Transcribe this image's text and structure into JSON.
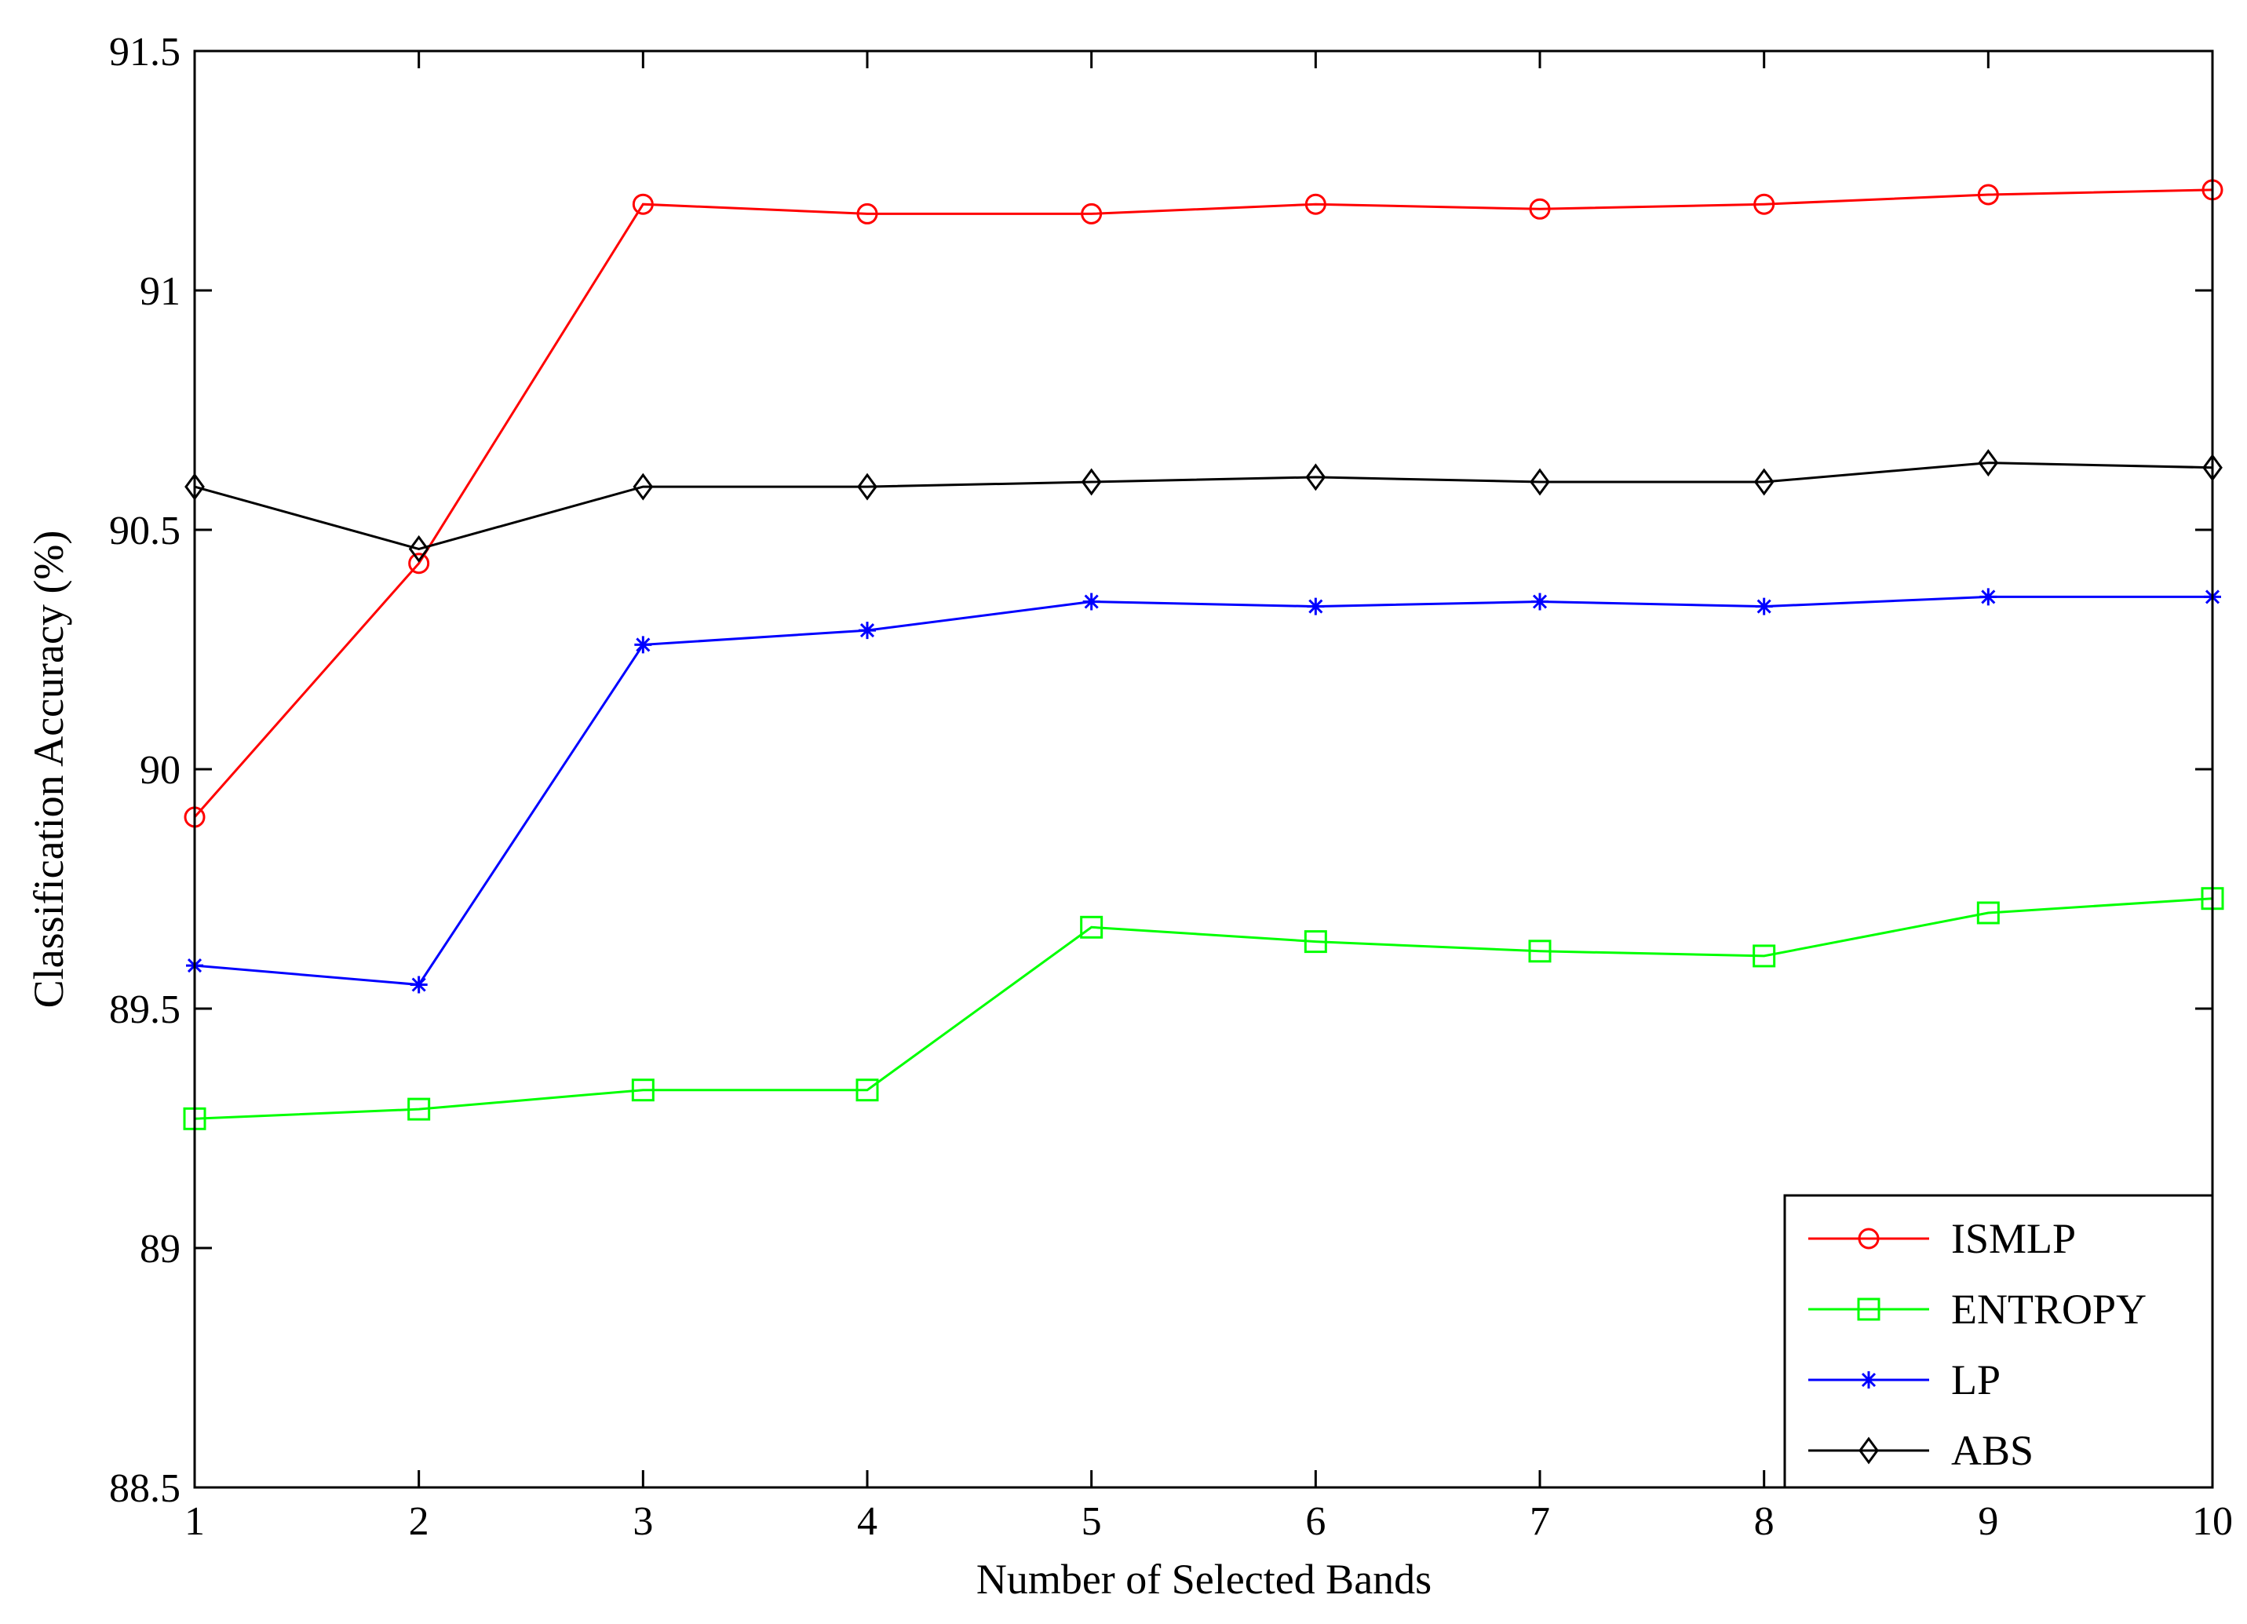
{
  "chart_data": {
    "type": "line",
    "title": "",
    "xlabel": "Number of Selected Bands",
    "ylabel": "Classification Accuracy (%)",
    "xlim": [
      1,
      10
    ],
    "ylim": [
      88.5,
      91.5
    ],
    "x": [
      1,
      2,
      3,
      4,
      5,
      6,
      7,
      8,
      9,
      10
    ],
    "xticks": [
      "1",
      "2",
      "3",
      "4",
      "5",
      "6",
      "7",
      "8",
      "9",
      "10"
    ],
    "yticks": [
      "88.5",
      "89",
      "89.5",
      "90",
      "90.5",
      "91",
      "91.5"
    ],
    "grid": false,
    "legend_position": "bottom-right",
    "series": [
      {
        "name": "ISMLP",
        "color": "#ff0000",
        "marker": "circle",
        "values": [
          89.9,
          90.43,
          91.18,
          91.16,
          91.16,
          91.18,
          91.17,
          91.18,
          91.2,
          91.21
        ]
      },
      {
        "name": "ENTROPY",
        "color": "#00ff00",
        "marker": "square",
        "values": [
          89.27,
          89.29,
          89.33,
          89.33,
          89.67,
          89.64,
          89.62,
          89.61,
          89.7,
          89.73
        ]
      },
      {
        "name": "LP",
        "color": "#0000ff",
        "marker": "asterisk",
        "values": [
          89.59,
          89.55,
          90.26,
          90.29,
          90.35,
          90.34,
          90.35,
          90.34,
          90.36,
          90.36
        ]
      },
      {
        "name": "ABS",
        "color": "#000000",
        "marker": "diamond",
        "values": [
          90.59,
          90.46,
          90.59,
          90.59,
          90.6,
          90.61,
          90.6,
          90.6,
          90.64,
          90.63
        ]
      }
    ]
  }
}
